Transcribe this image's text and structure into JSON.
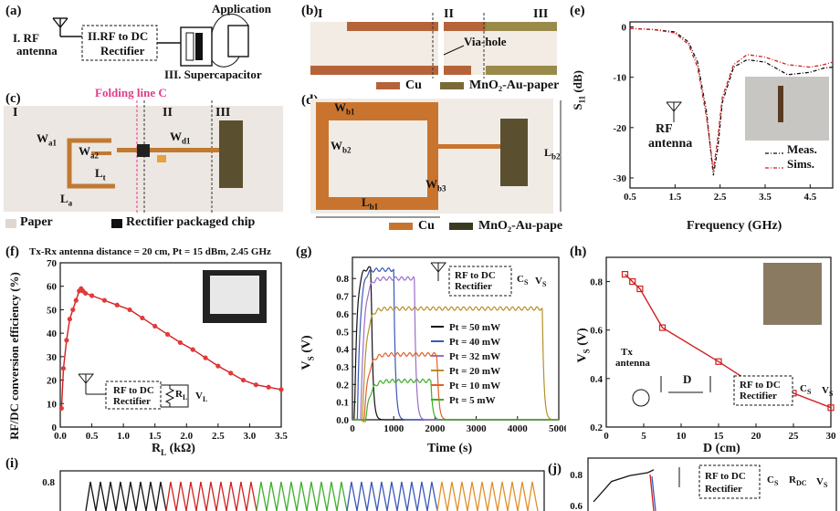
{
  "labels": {
    "a": "(a)",
    "b": "(b)",
    "c": "(c)",
    "d": "(d)",
    "e": "(e)",
    "f": "(f)",
    "g": "(g)",
    "h": "(h)",
    "i": "(i)",
    "j": "(j)"
  },
  "panel_a": {
    "antenna": [
      "I. RF",
      "antenna"
    ],
    "rectifier": [
      "II.RF to DC",
      "Rectifier"
    ],
    "application": "Application",
    "supercap": "III. Supercapacitor"
  },
  "panel_b": {
    "regions": [
      "I",
      "II",
      "III"
    ],
    "via": "Via-hole",
    "legend_cu": "Cu",
    "legend_mno": "MnO₂-Au-paper"
  },
  "panel_c": {
    "fold": "Folding line C",
    "regions": [
      "I",
      "II",
      "III"
    ],
    "dims": [
      "W",
      "a1",
      "W",
      "a2",
      "L",
      "t",
      "W",
      "d1",
      "L",
      "a"
    ],
    "legend_paper": "Paper",
    "legend_chip": "Rectifier packaged chip"
  },
  "panel_d": {
    "dims": [
      "W",
      "b1",
      "W",
      "b2",
      "L",
      "b2",
      "W",
      "b3",
      "L",
      "b1"
    ],
    "legend_cu": "Cu",
    "legend_mno": "MnO₂-Au-paper"
  },
  "panel_e": {
    "ylabel_main": "S",
    "ylabel_sub": "11",
    "ylabel_unit": " (dB)",
    "xlabel": "Frequency (GHz)",
    "rf": [
      "RF",
      "antenna"
    ],
    "legend": [
      "Meas.",
      "Sims."
    ],
    "colors": {
      "meas": "#111111",
      "sims": "#d11f1f"
    }
  },
  "panel_f": {
    "title": "Tx-Rx antenna distance = 20 cm, Pt = 15 dBm, 2.45 GHz",
    "ylabel": "RF/DC conversion efficiency (%)",
    "xlabel_main": "R",
    "xlabel_sub": "L",
    "xlabel_unit": " (kΩ)",
    "circuit": [
      "RF to DC",
      "Rectifier",
      "R",
      "L",
      "V",
      "L"
    ]
  },
  "panel_g": {
    "ylabel_main": "V",
    "ylabel_sub": "S",
    "ylabel_unit": " (V)",
    "xlabel": "Time (s)",
    "circuit": [
      "RF to DC",
      "Rectifier",
      "C",
      "S",
      "V",
      "S"
    ]
  },
  "panel_h": {
    "ylabel_main": "V",
    "ylabel_sub": "S",
    "ylabel_unit": " (V)",
    "xlabel": "D  (cm)",
    "tx": [
      "Tx",
      "antenna"
    ],
    "d_label": "D",
    "circuit": [
      "RF to DC",
      "Rectifier",
      "C",
      "S",
      "V",
      "S"
    ]
  },
  "panel_j": {
    "circuit": [
      "RF to DC",
      "Rectifier",
      "C",
      "S",
      "R",
      "DC",
      "V",
      "S"
    ]
  },
  "chart_data": [
    {
      "panel": "e",
      "type": "line",
      "xlabel": "Frequency (GHz)",
      "ylabel": "S11 (dB)",
      "xlim": [
        0.5,
        5.0
      ],
      "ylim": [
        -32,
        1
      ],
      "xticks": [
        "0.5",
        "1.5",
        "2.5",
        "3.5",
        "4.5"
      ],
      "yticks": [
        "0",
        "-10",
        "-20",
        "-30"
      ],
      "series": [
        {
          "name": "Meas.",
          "x": [
            0.5,
            1.0,
            1.5,
            1.8,
            2.0,
            2.2,
            2.35,
            2.45,
            2.55,
            2.8,
            3.1,
            3.5,
            4.0,
            4.5,
            4.8,
            5.0
          ],
          "y": [
            -0.3,
            -0.5,
            -1.0,
            -3,
            -7,
            -17,
            -29.5,
            -24,
            -15,
            -8,
            -6.5,
            -7,
            -9.5,
            -9,
            -8.2,
            -8
          ]
        },
        {
          "name": "Sims.",
          "x": [
            0.5,
            1.0,
            1.5,
            1.8,
            2.0,
            2.2,
            2.35,
            2.45,
            2.55,
            2.8,
            3.1,
            3.5,
            4.0,
            4.5,
            4.8,
            5.0
          ],
          "y": [
            -0.3,
            -0.5,
            -1.2,
            -3.5,
            -8,
            -18,
            -28.5,
            -22,
            -14,
            -7.5,
            -5.5,
            -6,
            -7.5,
            -8,
            -7.5,
            -7
          ]
        }
      ]
    },
    {
      "panel": "f",
      "type": "line",
      "xlabel": "RL (kΩ)",
      "ylabel": "RF/DC conversion efficiency (%)",
      "xlim": [
        0,
        3.5
      ],
      "ylim": [
        0,
        70
      ],
      "xticks": [
        "0.0",
        "0.5",
        "1.0",
        "1.5",
        "2.0",
        "2.5",
        "3.0",
        "3.5"
      ],
      "yticks": [
        "0",
        "10",
        "20",
        "30",
        "40",
        "50",
        "60",
        "70"
      ],
      "series": [
        {
          "x": [
            0.02,
            0.05,
            0.1,
            0.15,
            0.2,
            0.25,
            0.3,
            0.33,
            0.36,
            0.4,
            0.5,
            0.7,
            0.9,
            1.1,
            1.3,
            1.5,
            1.7,
            1.9,
            2.1,
            2.3,
            2.5,
            2.7,
            2.9,
            3.1,
            3.3,
            3.5
          ],
          "y": [
            8,
            25,
            37,
            46,
            50,
            54,
            58,
            59,
            58,
            57,
            56,
            54,
            52,
            50,
            46.5,
            43,
            39.5,
            36,
            33,
            29.5,
            26,
            23,
            20,
            18,
            17,
            16
          ]
        }
      ]
    },
    {
      "panel": "g",
      "type": "line",
      "xlabel": "Time (s)",
      "ylabel": "VS (V)",
      "xlim": [
        0,
        5000
      ],
      "ylim": [
        0,
        0.92
      ],
      "xticks": [
        "0",
        "1000",
        "2000",
        "3000",
        "4000",
        "5000"
      ],
      "yticks": [
        "0.0",
        "0.1",
        "0.2",
        "0.3",
        "0.4",
        "0.5",
        "0.6",
        "0.7",
        "0.8"
      ],
      "series": [
        {
          "name": "Pt = 50 mW",
          "color": "#111111",
          "plateau": 0.86,
          "on": 50,
          "off": 450
        },
        {
          "name": "Pt = 40 mW",
          "color": "#3a58b8",
          "plateau": 0.85,
          "on": 120,
          "off": 1000
        },
        {
          "name": "Pt = 32 mW",
          "color": "#9a6ec8",
          "plateau": 0.8,
          "on": 200,
          "off": 1500
        },
        {
          "name": "Pt = 20 mW",
          "color": "#b8902a",
          "plateau": 0.63,
          "on": 240,
          "off": 4600
        },
        {
          "name": "Pt = 10 mW",
          "color": "#e0602a",
          "plateau": 0.37,
          "on": 280,
          "off": 2050
        },
        {
          "name": "Pt = 5 mW",
          "color": "#3fae2c",
          "plateau": 0.22,
          "on": 320,
          "off": 1900
        }
      ]
    },
    {
      "panel": "h",
      "type": "line",
      "xlabel": "D (cm)",
      "ylabel": "VS (V)",
      "xlim": [
        0,
        30
      ],
      "ylim": [
        0.2,
        0.9
      ],
      "xticks": [
        "0",
        "5",
        "10",
        "15",
        "20",
        "25",
        "30"
      ],
      "yticks": [
        "0.2",
        "0.4",
        "0.6",
        "0.8"
      ],
      "series": [
        {
          "x": [
            2.5,
            3.5,
            4.5,
            7.5,
            15,
            20,
            25,
            30
          ],
          "y": [
            0.83,
            0.8,
            0.77,
            0.61,
            0.47,
            0.37,
            0.34,
            0.28
          ]
        }
      ]
    },
    {
      "panel": "i",
      "type": "line",
      "yticks": [
        "0.8"
      ],
      "series": [
        {
          "color": "#111111",
          "cycles": 8,
          "peak": 0.85,
          "trough": 0.55
        },
        {
          "color": "#d11f1f",
          "cycles": 9,
          "peak": 0.82,
          "trough": 0.55
        },
        {
          "color": "#3fae2c",
          "cycles": 9,
          "peak": 0.8,
          "trough": 0.55
        },
        {
          "color": "#3a58b8",
          "cycles": 9,
          "peak": 0.79,
          "trough": 0.55
        },
        {
          "color": "#e0902a",
          "cycles": 10,
          "peak": 0.78,
          "trough": 0.55
        }
      ]
    },
    {
      "panel": "j",
      "type": "line",
      "yticks": [
        "0.8",
        "0.6"
      ],
      "series": [
        {
          "color": "#111111",
          "x": [
            0,
            0.3,
            0.6,
            0.9,
            1.0
          ],
          "y": [
            0.6,
            0.74,
            0.78,
            0.8,
            0.82
          ]
        }
      ]
    }
  ]
}
